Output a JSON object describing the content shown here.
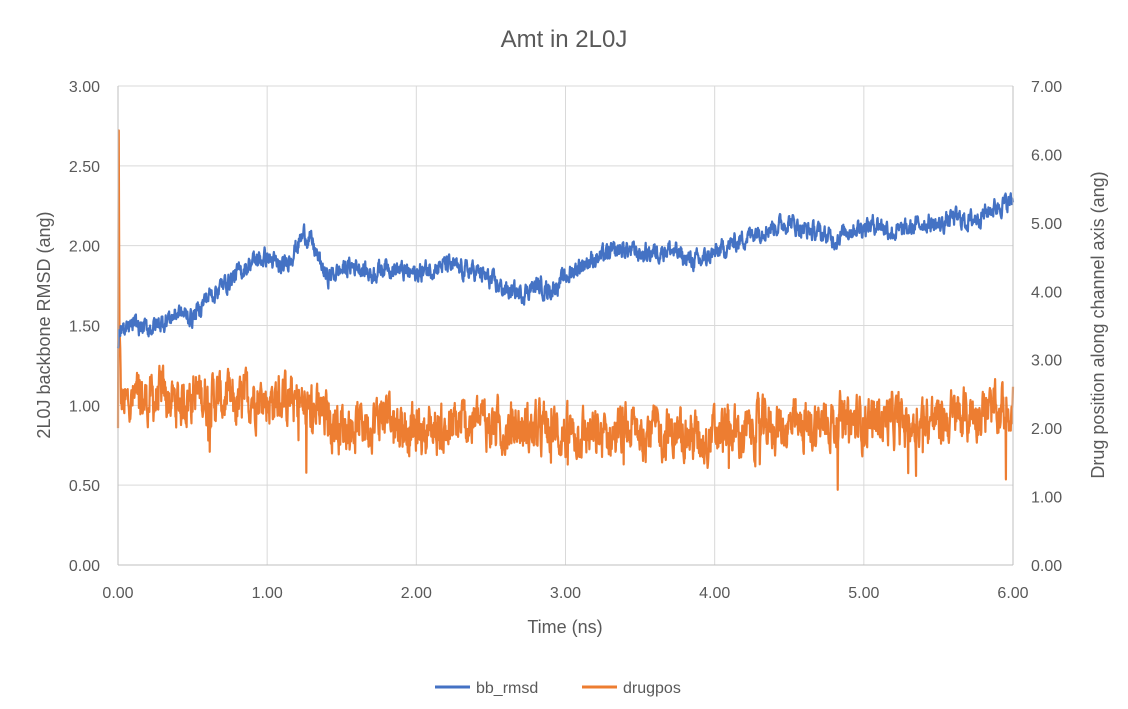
{
  "chart_data": {
    "type": "line",
    "title": "Amt in 2L0J",
    "xlabel": "Time (ns)",
    "ylabel": "2L0J backbone RMSD (ang)",
    "y2label": "Drug position along channel axis (ang)",
    "xlim": [
      0,
      6
    ],
    "ylim": [
      0,
      3
    ],
    "y2lim": [
      0,
      7
    ],
    "x_ticks": [
      "0.00",
      "1.00",
      "2.00",
      "3.00",
      "4.00",
      "5.00",
      "6.00"
    ],
    "y_ticks": [
      "0.00",
      "0.50",
      "1.00",
      "1.50",
      "2.00",
      "2.50",
      "3.00"
    ],
    "y2_ticks": [
      "0.00",
      "1.00",
      "2.00",
      "3.00",
      "4.00",
      "5.00",
      "6.00",
      "7.00"
    ],
    "grid": true,
    "legend_position": "bottom",
    "series": [
      {
        "name": "bb_rmsd",
        "axis": "left",
        "color": "#4472C4",
        "x": [
          0.0,
          0.02,
          0.05,
          0.1,
          0.2,
          0.3,
          0.4,
          0.5,
          0.6,
          0.7,
          0.8,
          0.9,
          1.0,
          1.1,
          1.2,
          1.25,
          1.3,
          1.35,
          1.4,
          1.5,
          1.6,
          1.7,
          1.8,
          1.9,
          2.0,
          2.1,
          2.2,
          2.3,
          2.4,
          2.5,
          2.6,
          2.7,
          2.8,
          2.9,
          3.0,
          3.1,
          3.2,
          3.3,
          3.4,
          3.5,
          3.6,
          3.7,
          3.8,
          3.9,
          4.0,
          4.1,
          4.2,
          4.3,
          4.4,
          4.5,
          4.6,
          4.7,
          4.8,
          4.9,
          5.0,
          5.1,
          5.2,
          5.3,
          5.4,
          5.5,
          5.6,
          5.7,
          5.8,
          5.9,
          6.0
        ],
        "values": [
          1.38,
          1.5,
          1.45,
          1.5,
          1.48,
          1.52,
          1.58,
          1.55,
          1.68,
          1.75,
          1.82,
          1.9,
          1.93,
          1.85,
          2.0,
          2.08,
          2.02,
          1.9,
          1.8,
          1.85,
          1.88,
          1.82,
          1.88,
          1.84,
          1.82,
          1.86,
          1.88,
          1.85,
          1.84,
          1.78,
          1.72,
          1.7,
          1.75,
          1.72,
          1.8,
          1.88,
          1.92,
          1.95,
          1.98,
          1.95,
          1.96,
          1.98,
          1.92,
          1.9,
          1.95,
          2.0,
          2.05,
          2.1,
          2.12,
          2.15,
          2.1,
          2.08,
          2.04,
          2.1,
          2.12,
          2.14,
          2.08,
          2.1,
          2.15,
          2.12,
          2.18,
          2.15,
          2.2,
          2.25,
          2.28
        ],
        "noise": 0.045
      },
      {
        "name": "drugpos",
        "axis": "right",
        "color": "#ED7D31",
        "x": [
          0.0,
          0.005,
          0.01,
          0.02,
          0.05,
          0.1,
          0.2,
          0.3,
          0.4,
          0.5,
          0.6,
          0.7,
          0.8,
          0.9,
          1.0,
          1.1,
          1.2,
          1.3,
          1.4,
          1.5,
          1.6,
          1.7,
          1.8,
          1.9,
          2.0,
          2.1,
          2.2,
          2.3,
          2.4,
          2.5,
          2.6,
          2.7,
          2.8,
          2.9,
          3.0,
          3.1,
          3.2,
          3.3,
          3.4,
          3.5,
          3.6,
          3.7,
          3.8,
          3.9,
          4.0,
          4.1,
          4.2,
          4.3,
          4.4,
          4.5,
          4.6,
          4.7,
          4.8,
          4.9,
          5.0,
          5.1,
          5.2,
          5.3,
          5.4,
          5.5,
          5.6,
          5.7,
          5.8,
          5.9,
          6.0
        ],
        "values": [
          2.0,
          6.35,
          3.4,
          2.4,
          2.3,
          2.4,
          2.4,
          2.45,
          2.35,
          2.5,
          2.45,
          2.42,
          2.3,
          2.5,
          2.4,
          2.45,
          2.35,
          2.25,
          2.15,
          2.05,
          2.05,
          2.1,
          2.2,
          2.05,
          1.95,
          2.0,
          1.95,
          2.05,
          2.1,
          2.05,
          2.0,
          2.0,
          1.95,
          2.0,
          1.9,
          1.95,
          1.85,
          1.9,
          1.95,
          2.0,
          1.95,
          1.9,
          1.9,
          1.85,
          1.9,
          1.95,
          1.9,
          2.0,
          2.05,
          2.0,
          2.0,
          2.05,
          2.1,
          2.05,
          2.1,
          2.15,
          2.1,
          2.05,
          2.15,
          2.1,
          2.15,
          2.2,
          2.25,
          2.2,
          2.35
        ],
        "noise": 0.28
      }
    ]
  }
}
